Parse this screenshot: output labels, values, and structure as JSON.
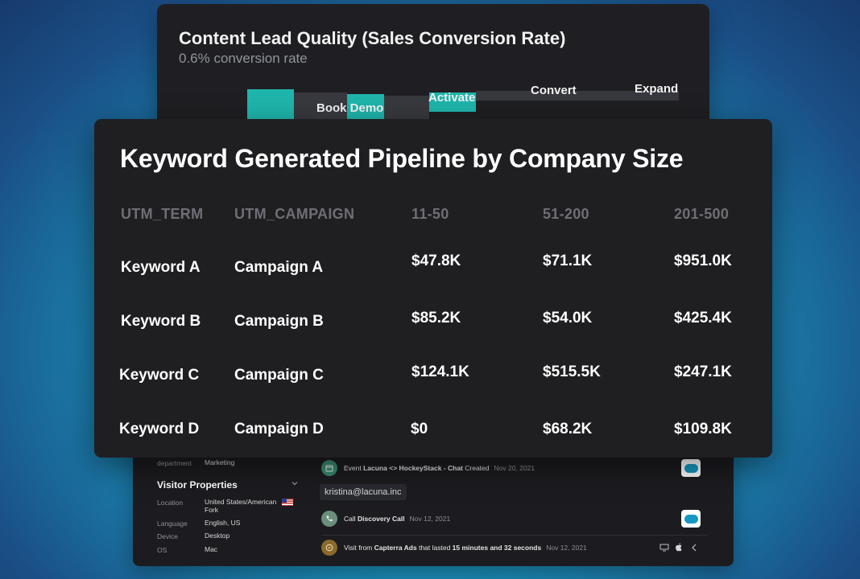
{
  "funnel": {
    "title": "Content Lead Quality (Sales Conversion Rate)",
    "subtitle": "0.6% conversion rate",
    "stages": [
      "Book Demo",
      "Activate",
      "Convert",
      "Expand"
    ],
    "bar_color": "#1fb5ac"
  },
  "table": {
    "title": "Keyword Generated Pipeline by Company Size",
    "columns": [
      "UTM_TERM",
      "UTM_CAMPAIGN",
      "11-50",
      "51-200",
      "201-500"
    ],
    "rows": [
      [
        "Keyword A",
        "Campaign A",
        "$47.8K",
        "$71.1K",
        "$951.0K"
      ],
      [
        "Keyword B",
        "Campaign B",
        "$85.2K",
        "$54.0K",
        "$425.4K"
      ],
      [
        "Keyword C",
        "Campaign C",
        "$124.1K",
        "$515.5K",
        "$247.1K"
      ],
      [
        "Keyword D",
        "Campaign D",
        "$0",
        "$68.2K",
        "$109.8K"
      ]
    ]
  },
  "activity": {
    "properties": {
      "department_key": "department",
      "department_value": "Marketing",
      "visitor_title": "Visitor Properties",
      "location_key": "Location",
      "location_value_1": "United States/American",
      "location_value_2": "Fork",
      "language_key": "Language",
      "language_value": "English, US",
      "device_key": "Device",
      "device_value": "Desktop",
      "os_key": "OS",
      "os_value": "Mac"
    },
    "events": [
      {
        "prefix": "Event ",
        "bold": "Lacuna <> HockeyStack - Chat",
        "suffix": " Created",
        "date": "Nov 20, 2021",
        "icon": "calendar-icon"
      },
      {
        "prefix": "Call ",
        "bold": "Discovery Call",
        "suffix": "",
        "date": "Nov 12, 2021",
        "icon": "phone-icon"
      },
      {
        "prefix": "Visit from ",
        "bold": "Capterra Ads",
        "suffix": " that lasted ",
        "bold2": "15 minutes and 32 seconds",
        "date": "Nov 12, 2021",
        "icon": "compass-icon"
      }
    ],
    "email": "kristina@lacuna.inc"
  },
  "colors": {
    "card_bg": "#1f1f22",
    "header_muted": "#6e6f75",
    "accent_teal": "#1fb5ac",
    "salesforce_blue": "#1798c1"
  }
}
